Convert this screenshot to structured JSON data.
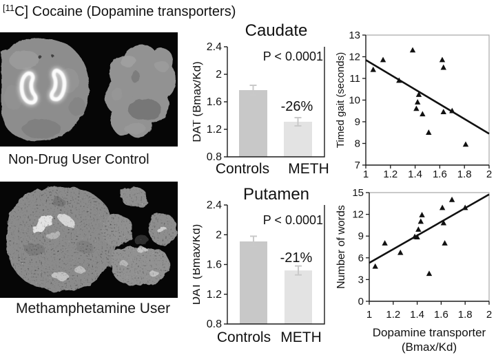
{
  "figure_title": {
    "superscript": "[11",
    "rest": "C] Cocaine (Dopamine transporters)"
  },
  "pet_panels": [
    {
      "id": "control",
      "label": "Non-Drug User Control"
    },
    {
      "id": "meth",
      "label": "Methamphetamine User"
    }
  ],
  "colors": {
    "controls_bar": "#c8c8c8",
    "meth_bar": "#e3e3e3",
    "error_bar": "#c9c9c9",
    "axis": "#1a1a1a",
    "frame_gray": "#a9a9a9",
    "marker": "#111111"
  },
  "chart_data": [
    {
      "id": "caudate",
      "type": "bar",
      "title": "Caudate",
      "ylabel": "DAT (Bmax/Kd)",
      "categories": [
        "Controls",
        "METH"
      ],
      "values": [
        1.77,
        1.31
      ],
      "errors": [
        0.07,
        0.06
      ],
      "ylim": [
        0.8,
        2.4
      ],
      "yticks": [
        "0.8",
        "1.2",
        "1.6",
        "2",
        "2.4"
      ],
      "annotation": "P < 0.0001",
      "pct_label": "-26%",
      "grid": false,
      "legend": "none"
    },
    {
      "id": "putamen",
      "type": "bar",
      "title": "Putamen",
      "ylabel": "DAT (Bmax/Kd)",
      "categories": [
        "Controls",
        "METH"
      ],
      "values": [
        1.91,
        1.52
      ],
      "errors": [
        0.07,
        0.06
      ],
      "ylim": [
        0.8,
        2.4
      ],
      "yticks": [
        "0.8",
        "1.2",
        "1.6",
        "2",
        "2.4"
      ],
      "annotation": "P < 0.0001",
      "pct_label": "-21%",
      "grid": false,
      "legend": "none"
    },
    {
      "id": "gait",
      "type": "scatter",
      "title": "",
      "ylabel": "Timed gait (seconds)",
      "xlabel_lines": [],
      "xlim": [
        1,
        2
      ],
      "ylim": [
        7,
        13
      ],
      "xticks": [
        "1",
        "1.2",
        "1.4",
        "1.6",
        "1.8",
        "2"
      ],
      "yticks": [
        "7",
        "8",
        "9",
        "10",
        "11",
        "12",
        "13"
      ],
      "marker": "triangle",
      "points": [
        [
          1.06,
          11.4
        ],
        [
          1.14,
          11.85
        ],
        [
          1.27,
          10.9
        ],
        [
          1.38,
          12.3
        ],
        [
          1.43,
          10.25
        ],
        [
          1.42,
          9.9
        ],
        [
          1.41,
          9.6
        ],
        [
          1.46,
          9.35
        ],
        [
          1.51,
          8.5
        ],
        [
          1.62,
          11.85
        ],
        [
          1.63,
          11.5
        ],
        [
          1.63,
          9.45
        ],
        [
          1.7,
          9.5
        ],
        [
          1.81,
          7.95
        ]
      ],
      "trendline": {
        "x1": 1.0,
        "y1": 11.85,
        "x2": 2.0,
        "y2": 8.45
      },
      "grid": false,
      "legend": "none"
    },
    {
      "id": "words",
      "type": "scatter",
      "title": "",
      "ylabel": "Number of words",
      "xlabel_lines": [
        "Dopamine transporter",
        "(Bmax/Kd)"
      ],
      "xlim": [
        1,
        2
      ],
      "ylim": [
        0,
        15
      ],
      "xticks": [
        "1",
        "1.2",
        "1.4",
        "1.6",
        "1.8",
        "2"
      ],
      "yticks": [
        "0",
        "3",
        "6",
        "9",
        "12",
        "15"
      ],
      "marker": "triangle",
      "points": [
        [
          1.05,
          4.8
        ],
        [
          1.13,
          8.0
        ],
        [
          1.26,
          6.7
        ],
        [
          1.38,
          8.9
        ],
        [
          1.4,
          8.85
        ],
        [
          1.41,
          9.9
        ],
        [
          1.43,
          11.0
        ],
        [
          1.44,
          11.9
        ],
        [
          1.5,
          3.8
        ],
        [
          1.61,
          12.9
        ],
        [
          1.62,
          10.8
        ],
        [
          1.63,
          8.0
        ],
        [
          1.69,
          14.0
        ],
        [
          1.8,
          12.9
        ]
      ],
      "trendline": {
        "x1": 1.0,
        "y1": 5.3,
        "x2": 2.0,
        "y2": 14.75
      },
      "grid": false,
      "legend": "none"
    }
  ]
}
